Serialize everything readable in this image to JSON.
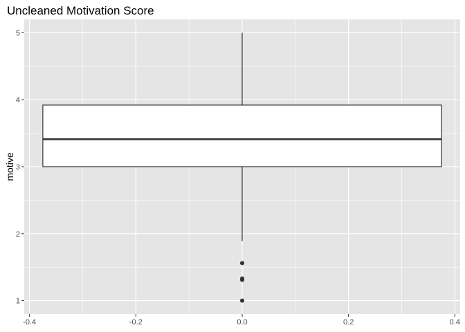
{
  "chart_data": {
    "type": "boxplot",
    "title": "Uncleaned Motivation Score",
    "xlabel": "",
    "ylabel": "motive",
    "xlim": [
      -0.41,
      0.41
    ],
    "ylim": [
      0.8,
      5.2
    ],
    "x_ticks": [
      -0.4,
      -0.2,
      0.0,
      0.2,
      0.4
    ],
    "x_tick_labels": [
      "-0.4",
      "-0.2",
      "0.0",
      "0.2",
      "0.4"
    ],
    "y_ticks": [
      1,
      2,
      3,
      4,
      5
    ],
    "y_tick_labels": [
      "1",
      "2",
      "3",
      "4",
      "5"
    ],
    "grid": true,
    "panel_background": "#e5e5e5",
    "grid_color": "#ffffff",
    "box": {
      "x_center": 0.0,
      "x_min": -0.375,
      "x_max": 0.375,
      "whisker_low": 1.89,
      "q1": 3.0,
      "median": 3.41,
      "q3": 3.92,
      "whisker_high": 5.0,
      "outliers": [
        1.56,
        1.33,
        1.31,
        1.0
      ],
      "box_fill": "#ffffff",
      "line_color": "#333333"
    }
  }
}
